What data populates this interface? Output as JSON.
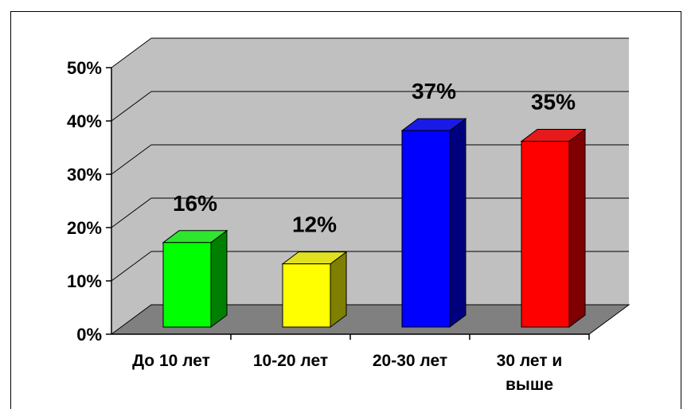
{
  "chart_data": {
    "type": "bar",
    "categories": [
      "До 10 лет",
      "10-20 лет",
      "20-30 лет",
      "30 лет и выше"
    ],
    "category_lines": [
      [
        "До 10 лет"
      ],
      [
        "10-20 лет"
      ],
      [
        "20-30 лет"
      ],
      [
        "30 лет и",
        "выше"
      ]
    ],
    "values": [
      16,
      12,
      37,
      35
    ],
    "data_labels": [
      "16%",
      "12%",
      "37%",
      "35%"
    ],
    "y_ticks": [
      "0%",
      "10%",
      "20%",
      "30%",
      "40%",
      "50%"
    ],
    "ylim": [
      0,
      50
    ],
    "grid": true,
    "style": "3d",
    "colors": {
      "bars": [
        {
          "front": "#00ff00",
          "top": "#2ee62e",
          "side": "#007f00"
        },
        {
          "front": "#ffff00",
          "top": "#e0e020",
          "side": "#7f7f00"
        },
        {
          "front": "#0000ff",
          "top": "#1a1ae6",
          "side": "#00007f"
        },
        {
          "front": "#ff0000",
          "top": "#e61a1a",
          "side": "#7f0000"
        }
      ],
      "wall": "#c0c0c0",
      "floor": "#808080",
      "grid": "#000000"
    }
  }
}
